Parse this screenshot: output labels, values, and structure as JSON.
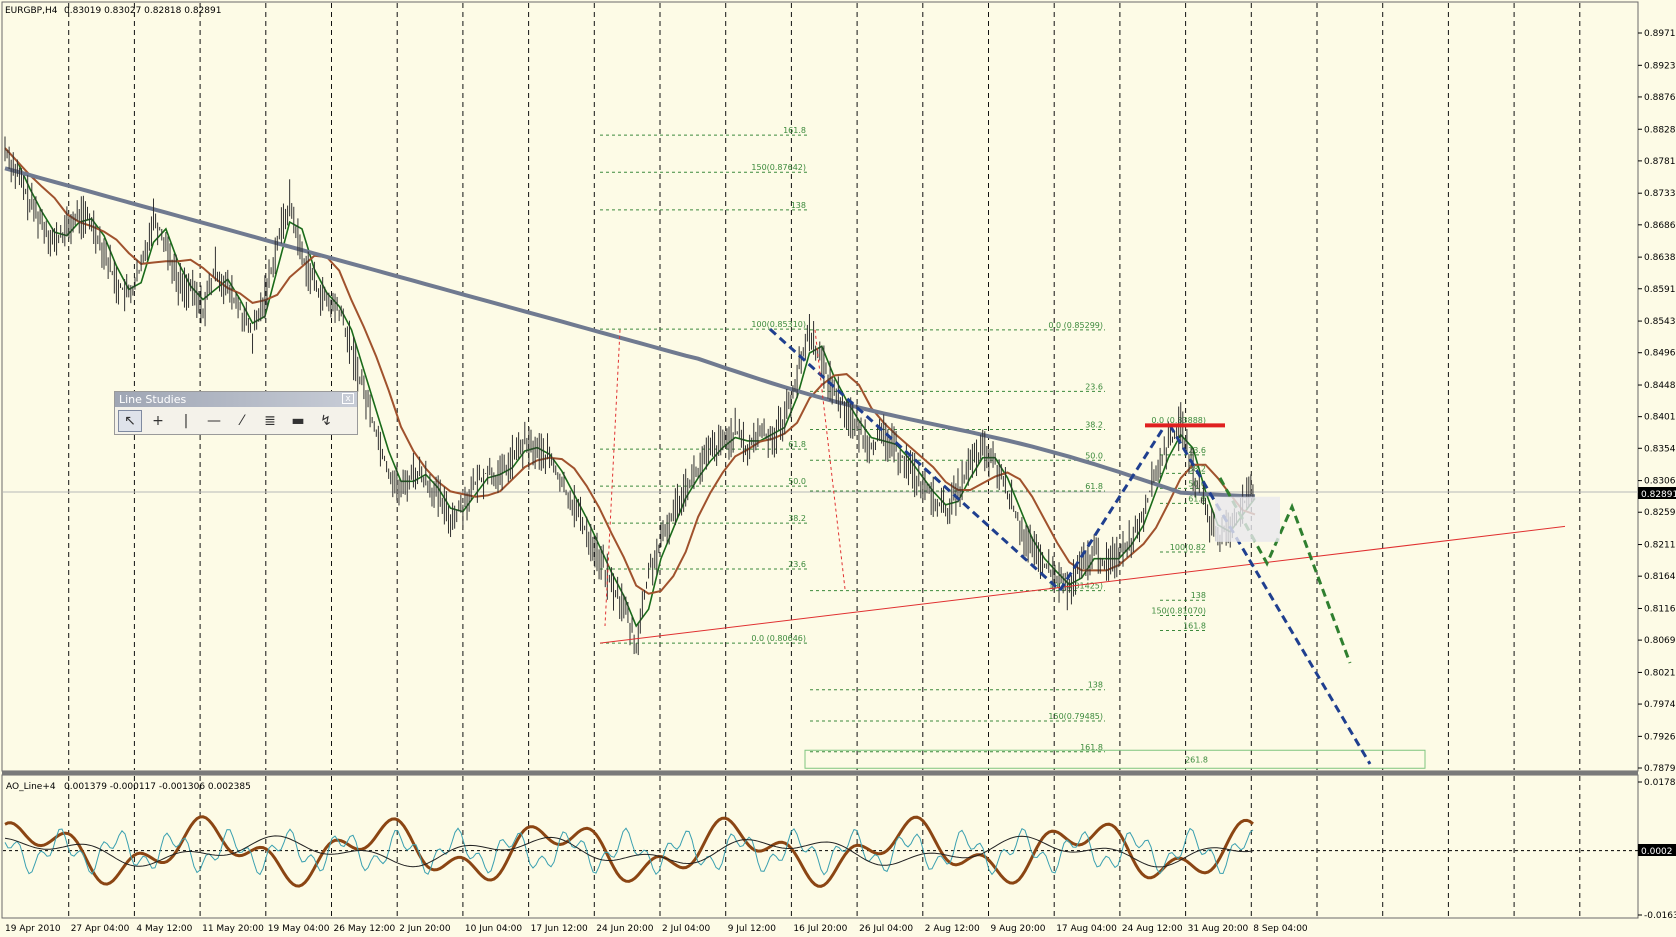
{
  "header": {
    "symbol": "EURGBP,H4",
    "ohlc": "0.83019 0.83027 0.82818 0.82891"
  },
  "indicator_header": {
    "name": "AO_Line+4",
    "values": "0.001379 -0.000117 -0.001306 0.002385"
  },
  "current_price_label": "0.82891",
  "indicator_zero_label": "0.0002",
  "line_studies": {
    "title": "Line Studies",
    "close_label": "x",
    "tools": [
      {
        "name": "cursor-tool",
        "glyph": "↖"
      },
      {
        "name": "crosshair-tool",
        "glyph": "+"
      },
      {
        "name": "vertical-line-tool",
        "glyph": "|"
      },
      {
        "name": "horizontal-line-tool",
        "glyph": "—"
      },
      {
        "name": "trendline-tool",
        "glyph": "⁄"
      },
      {
        "name": "fibonacci-tool",
        "glyph": "≣"
      },
      {
        "name": "rectangle-tool",
        "glyph": "▬"
      },
      {
        "name": "arrows-tool",
        "glyph": "↯"
      }
    ]
  },
  "chart_data": {
    "type": "line",
    "symbol": "EURGBP",
    "timeframe": "H4",
    "ylim": [
      0.7879,
      0.8971
    ],
    "y_ticks": [
      "0.89710",
      "0.89230",
      "0.88760",
      "0.88280",
      "0.87810",
      "0.87330",
      "0.86860",
      "0.86380",
      "0.85910",
      "0.85430",
      "0.84960",
      "0.84480",
      "0.84010",
      "0.83540",
      "0.83060",
      "0.82590",
      "0.82110",
      "0.81640",
      "0.81160",
      "0.80690",
      "0.80210",
      "0.79740",
      "0.79260",
      "0.78790"
    ],
    "x_ticks": [
      "19 Apr 2010",
      "27 Apr 04:00",
      "4 May 12:00",
      "11 May 20:00",
      "19 May 04:00",
      "26 May 12:00",
      "2 Jun 20:00",
      "10 Jun 04:00",
      "17 Jun 12:00",
      "24 Jun 20:00",
      "2 Jul 04:00",
      "9 Jul 12:00",
      "16 Jul 20:00",
      "26 Jul 04:00",
      "2 Aug 12:00",
      "9 Aug 20:00",
      "17 Aug 04:00",
      "24 Aug 12:00",
      "31 Aug 20:00",
      "8 Sep 04:00"
    ],
    "indicator_ylim": [
      -0.01636,
      0.01787
    ],
    "indicator_ticks": [
      "0.01787",
      "0.0002",
      "-0.01636"
    ],
    "grid": "vertical dashed",
    "price_series": {
      "name": "",
      "values": [
        0.88,
        0.876,
        0.872,
        0.869,
        0.866,
        0.868,
        0.87,
        0.869,
        0.865,
        0.86,
        0.858,
        0.862,
        0.87,
        0.866,
        0.86,
        0.859,
        0.856,
        0.862,
        0.859,
        0.856,
        0.852,
        0.858,
        0.866,
        0.872,
        0.864,
        0.86,
        0.857,
        0.856,
        0.85,
        0.844,
        0.838,
        0.832,
        0.829,
        0.832,
        0.831,
        0.828,
        0.825,
        0.827,
        0.83,
        0.832,
        0.831,
        0.834,
        0.836,
        0.835,
        0.834,
        0.83,
        0.827,
        0.823,
        0.819,
        0.815,
        0.812,
        0.806,
        0.817,
        0.821,
        0.826,
        0.83,
        0.832,
        0.835,
        0.836,
        0.838,
        0.835,
        0.838,
        0.837,
        0.84,
        0.846,
        0.8531,
        0.848,
        0.844,
        0.841,
        0.838,
        0.836,
        0.837,
        0.835,
        0.833,
        0.83,
        0.828,
        0.826,
        0.829,
        0.833,
        0.835,
        0.833,
        0.829,
        0.824,
        0.82,
        0.818,
        0.816,
        0.8143,
        0.818,
        0.82,
        0.818,
        0.82,
        0.822,
        0.826,
        0.832,
        0.836,
        0.8388,
        0.832,
        0.826,
        0.822,
        0.824,
        0.827,
        0.8289
      ]
    },
    "fib_levels": [
      {
        "label": "161.8"
      },
      {
        "label": "150(0.87642)"
      },
      {
        "label": "138"
      },
      {
        "label": "100(0.85310)"
      },
      {
        "label": "61.8"
      },
      {
        "label": "50.0"
      },
      {
        "label": "38.2"
      },
      {
        "label": "23.6"
      },
      {
        "label": "0.0 (0.80646)"
      },
      {
        "label": "0.0 (0.85299)"
      },
      {
        "label": "23.6"
      },
      {
        "label": "38.2"
      },
      {
        "label": "50.0"
      },
      {
        "label": "61.8"
      },
      {
        "label": "100(0.81425)"
      },
      {
        "label": "138"
      },
      {
        "label": "150(0.79485)"
      },
      {
        "label": "161.8"
      },
      {
        "label": "0.0 (0.83888)"
      },
      {
        "label": "23.6"
      },
      {
        "label": "38.2"
      },
      {
        "label": "50.0"
      },
      {
        "label": "61.8"
      },
      {
        "label": "100(0.82"
      },
      {
        "label": "138"
      },
      {
        "label": "150(0.81070)"
      },
      {
        "label": "161.8"
      },
      {
        "label": "261.8"
      }
    ]
  },
  "colors": {
    "background": "#fdfbe6",
    "price": "#303030",
    "ma_fast": "#1a6b1a",
    "ma_mid": "#a0522d",
    "ma_slow": "#707a90",
    "fib": "#3c8a3c",
    "trend_blue": "#1f3f8f",
    "trend_green": "#2f7f2f",
    "support": "#e03030",
    "ao_brown": "#8b4513",
    "ao_teal": "#3aa0b0"
  }
}
